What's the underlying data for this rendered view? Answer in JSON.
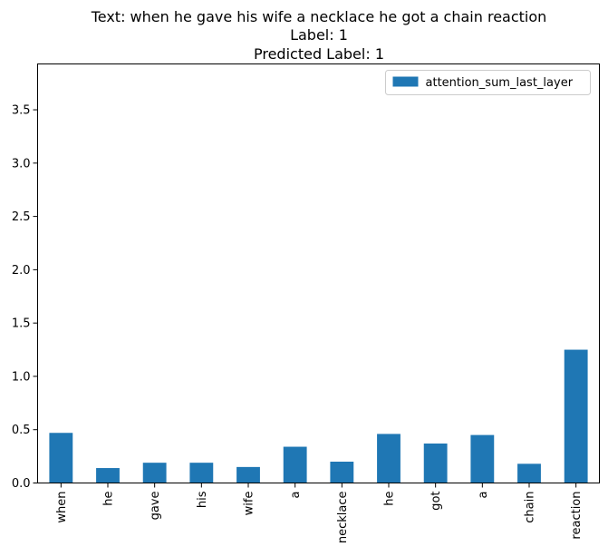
{
  "title_lines": [
    "Text: when he gave his wife a necklace he got a chain reaction",
    "Label: 1",
    "Predicted Label: 1"
  ],
  "colors": {
    "bar": "#1f77b4",
    "axis": "#000000",
    "background": "#ffffff"
  },
  "chart_data": {
    "type": "bar",
    "title": "Text: when he gave his wife a necklace he got a chain reaction\nLabel: 1\nPredicted Label: 1",
    "categories": [
      "when",
      "he",
      "gave",
      "his",
      "wife",
      "a",
      "necklace",
      "he",
      "got",
      "a",
      "chain",
      "reaction"
    ],
    "series": [
      {
        "name": "attention_sum_last_layer",
        "values": [
          0.47,
          0.14,
          0.19,
          0.19,
          0.15,
          0.34,
          0.2,
          0.46,
          0.37,
          0.45,
          0.18,
          1.25
        ]
      }
    ],
    "xlabel": "",
    "ylabel": "",
    "ylim": [
      0,
      3.93
    ],
    "yticks": [
      0.0,
      0.5,
      1.0,
      1.5,
      2.0,
      2.5,
      3.0,
      3.5
    ],
    "ytick_labels": [
      "0.0",
      "0.5",
      "1.0",
      "1.5",
      "2.0",
      "2.5",
      "3.0",
      "3.5"
    ],
    "legend": {
      "entries": [
        "attention_sum_last_layer"
      ],
      "placement": "top-right"
    },
    "grid": false
  }
}
